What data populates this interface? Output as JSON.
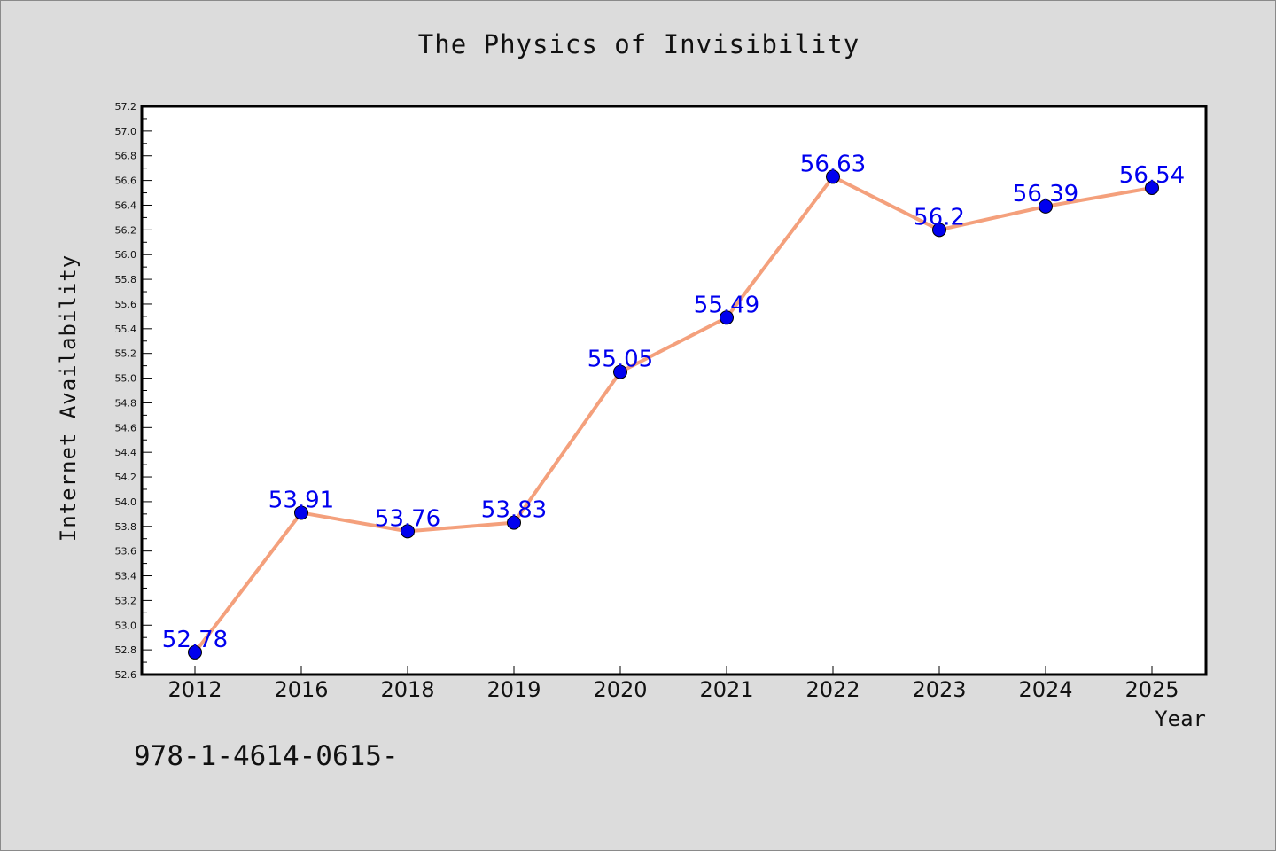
{
  "chart_data": {
    "type": "line",
    "title": "The Physics of Invisibility",
    "xlabel": "Year",
    "ylabel": "Internet Availability",
    "categories": [
      "2012",
      "2016",
      "2018",
      "2019",
      "2020",
      "2021",
      "2022",
      "2023",
      "2024",
      "2025"
    ],
    "series": [
      {
        "values": [
          52.78,
          53.91,
          53.76,
          53.83,
          55.05,
          55.49,
          56.63,
          56.2,
          56.39,
          56.54
        ],
        "line_color": "#f4a07c",
        "marker_color": "#0000ee"
      }
    ],
    "data_labels": [
      "52.78",
      "53.91",
      "53.76",
      "53.83",
      "55.05",
      "55.49",
      "56.63",
      "56.2",
      "56.39",
      "56.54"
    ],
    "ylim": [
      52.6,
      57.2
    ],
    "yticks": [
      "52.6",
      "52.8",
      "53.0",
      "53.2",
      "53.4",
      "53.6",
      "53.8",
      "54.0",
      "54.2",
      "54.4",
      "54.6",
      "54.8",
      "55.0",
      "55.2",
      "55.4",
      "55.6",
      "55.8",
      "56.0",
      "56.2",
      "56.4",
      "56.6",
      "56.8",
      "57.0",
      "57.2"
    ],
    "grid": false,
    "legend": "none"
  },
  "footer_text": "978-1-4614-0615-",
  "colors": {
    "background": "#dcdcdc",
    "plot_background": "#ffffff",
    "line": "#f4a07c",
    "marker": "#0000ee",
    "data_label": "#0000ee"
  }
}
